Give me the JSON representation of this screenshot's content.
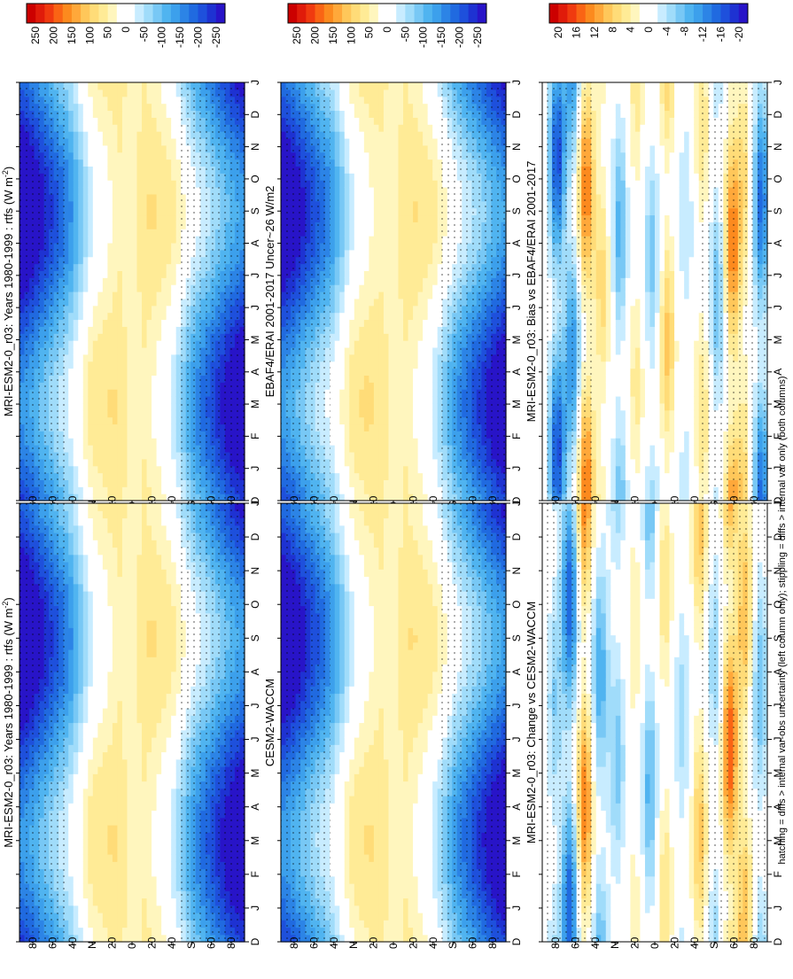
{
  "footnote": "hatching = diffs > internal var-obs uncertainty (left column only); stippling = diffs > internal var only (both columns)",
  "chart_data": [
    {
      "type": "heatmap",
      "id": "p1",
      "title": "MRI-ESM2-0_r03: Years 1980-1999 : rtfs (W m",
      "title_sup": "-2",
      "title_end": ")",
      "months": [
        "D",
        "J",
        "F",
        "M",
        "A",
        "M",
        "J",
        "J",
        "A",
        "S",
        "O",
        "N",
        "D",
        "J"
      ],
      "lat_ticks": [
        "80",
        "60",
        "40",
        "N",
        "20",
        "0",
        "20",
        "40",
        "S",
        "60",
        "80"
      ],
      "colorbar": [
        "250",
        "200",
        "150",
        "100",
        "50",
        "0",
        "-50",
        "-100",
        "-150",
        "-200",
        "-250"
      ],
      "colors": [
        "#cc0000",
        "#e01b0a",
        "#f03a0f",
        "#fa6414",
        "#fc8a1e",
        "#ffa83a",
        "#ffc75a",
        "#ffdc78",
        "#ffeb96",
        "#fff6be",
        "#ffffff",
        "#ffffff",
        "#c8ecff",
        "#a0dcfa",
        "#78c8f5",
        "#50b4f0",
        "#3ca0ec",
        "#2c84e6",
        "#206ae0",
        "#1e50dc",
        "#1e32d2",
        "#2814c8"
      ],
      "lat_profile": [
        [
          -90,
          -240
        ],
        [
          -80,
          -210
        ],
        [
          -70,
          -170
        ],
        [
          -60,
          -130
        ],
        [
          -50,
          -90
        ],
        [
          -45,
          -60
        ],
        [
          -40,
          -30
        ],
        [
          -35,
          5
        ],
        [
          -30,
          25
        ],
        [
          -20,
          45
        ],
        [
          -10,
          60
        ],
        [
          0,
          30
        ],
        [
          10,
          60
        ],
        [
          20,
          45
        ],
        [
          30,
          20
        ],
        [
          35,
          0
        ],
        [
          40,
          -25
        ],
        [
          50,
          -80
        ],
        [
          60,
          -120
        ],
        [
          70,
          -160
        ],
        [
          80,
          -200
        ],
        [
          90,
          -230
        ]
      ],
      "seasonal_amp": 180
    },
    {
      "type": "heatmap",
      "id": "p2",
      "title": "MRI-ESM2-0_r03: Years 1980-1999 : rtfs (W m",
      "title_sup": "-2",
      "title_end": ")",
      "months": [
        "D",
        "J",
        "F",
        "M",
        "A",
        "M",
        "J",
        "J",
        "A",
        "S",
        "O",
        "N",
        "D",
        "J"
      ],
      "lat_ticks": [
        "80",
        "60",
        "40",
        "N",
        "20",
        "0",
        "20",
        "40",
        "S",
        "60",
        "80"
      ],
      "colorbar": [
        "250",
        "200",
        "150",
        "100",
        "50",
        "0",
        "-50",
        "-100",
        "-150",
        "-200",
        "-250"
      ],
      "colors": [
        "#cc0000",
        "#e01b0a",
        "#f03a0f",
        "#fa6414",
        "#fc8a1e",
        "#ffa83a",
        "#ffc75a",
        "#ffdc78",
        "#ffeb96",
        "#fff6be",
        "#ffffff",
        "#ffffff",
        "#c8ecff",
        "#a0dcfa",
        "#78c8f5",
        "#50b4f0",
        "#3ca0ec",
        "#2c84e6",
        "#206ae0",
        "#1e50dc",
        "#1e32d2",
        "#2814c8"
      ],
      "lat_profile": [
        [
          -90,
          -240
        ],
        [
          -80,
          -210
        ],
        [
          -70,
          -170
        ],
        [
          -60,
          -130
        ],
        [
          -50,
          -90
        ],
        [
          -45,
          -60
        ],
        [
          -40,
          -30
        ],
        [
          -35,
          5
        ],
        [
          -30,
          25
        ],
        [
          -20,
          45
        ],
        [
          -10,
          60
        ],
        [
          0,
          30
        ],
        [
          10,
          60
        ],
        [
          20,
          45
        ],
        [
          30,
          20
        ],
        [
          35,
          0
        ],
        [
          40,
          -25
        ],
        [
          50,
          -80
        ],
        [
          60,
          -120
        ],
        [
          70,
          -160
        ],
        [
          80,
          -200
        ],
        [
          90,
          -230
        ]
      ],
      "seasonal_amp": 180
    },
    {
      "type": "heatmap",
      "id": "p3",
      "title": "EBAF4/ERAI 2001-2017 Uncer~26 W/m2",
      "months": [
        "D",
        "J",
        "F",
        "M",
        "A",
        "M",
        "J",
        "J",
        "A",
        "S",
        "O",
        "N",
        "D",
        "J"
      ],
      "lat_ticks": [
        "80",
        "60",
        "40",
        "N",
        "20",
        "0",
        "20",
        "40",
        "S",
        "60",
        "80"
      ],
      "colorbar": [
        "250",
        "200",
        "150",
        "100",
        "50",
        "0",
        "-50",
        "-100",
        "-150",
        "-200",
        "-250"
      ],
      "colors": [
        "#cc0000",
        "#e01b0a",
        "#f03a0f",
        "#fa6414",
        "#fc8a1e",
        "#ffa83a",
        "#ffc75a",
        "#ffdc78",
        "#ffeb96",
        "#fff6be",
        "#ffffff",
        "#ffffff",
        "#c8ecff",
        "#a0dcfa",
        "#78c8f5",
        "#50b4f0",
        "#3ca0ec",
        "#2c84e6",
        "#206ae0",
        "#1e50dc",
        "#1e32d2",
        "#2814c8"
      ],
      "lat_profile": [
        [
          -90,
          -230
        ],
        [
          -80,
          -200
        ],
        [
          -70,
          -160
        ],
        [
          -60,
          -120
        ],
        [
          -50,
          -85
        ],
        [
          -45,
          -55
        ],
        [
          -40,
          -25
        ],
        [
          -35,
          8
        ],
        [
          -30,
          28
        ],
        [
          -20,
          48
        ],
        [
          -10,
          55
        ],
        [
          0,
          35
        ],
        [
          10,
          58
        ],
        [
          20,
          45
        ],
        [
          30,
          18
        ],
        [
          35,
          0
        ],
        [
          40,
          -25
        ],
        [
          50,
          -75
        ],
        [
          60,
          -115
        ],
        [
          70,
          -150
        ],
        [
          80,
          -190
        ],
        [
          90,
          -220
        ]
      ],
      "seasonal_amp": 180
    },
    {
      "type": "heatmap",
      "id": "p4",
      "title": "CESM2-WACCM",
      "months": [
        "D",
        "J",
        "F",
        "M",
        "A",
        "M",
        "J",
        "J",
        "A",
        "S",
        "O",
        "N",
        "D",
        "J"
      ],
      "lat_ticks": [
        "80",
        "60",
        "40",
        "N",
        "20",
        "0",
        "20",
        "40",
        "S",
        "60",
        "80"
      ],
      "colorbar": [
        "250",
        "200",
        "150",
        "100",
        "50",
        "0",
        "-50",
        "-100",
        "-150",
        "-200",
        "-250"
      ],
      "colors": [
        "#cc0000",
        "#e01b0a",
        "#f03a0f",
        "#fa6414",
        "#fc8a1e",
        "#ffa83a",
        "#ffc75a",
        "#ffdc78",
        "#ffeb96",
        "#fff6be",
        "#ffffff",
        "#ffffff",
        "#c8ecff",
        "#a0dcfa",
        "#78c8f5",
        "#50b4f0",
        "#3ca0ec",
        "#2c84e6",
        "#206ae0",
        "#1e50dc",
        "#1e32d2",
        "#2814c8"
      ],
      "lat_profile": [
        [
          -90,
          -235
        ],
        [
          -80,
          -205
        ],
        [
          -70,
          -165
        ],
        [
          -60,
          -125
        ],
        [
          -50,
          -88
        ],
        [
          -45,
          -58
        ],
        [
          -40,
          -28
        ],
        [
          -35,
          5
        ],
        [
          -30,
          26
        ],
        [
          -20,
          46
        ],
        [
          -10,
          58
        ],
        [
          0,
          32
        ],
        [
          10,
          60
        ],
        [
          20,
          44
        ],
        [
          30,
          19
        ],
        [
          35,
          0
        ],
        [
          40,
          -24
        ],
        [
          50,
          -78
        ],
        [
          60,
          -118
        ],
        [
          70,
          -155
        ],
        [
          80,
          -195
        ],
        [
          90,
          -225
        ]
      ],
      "seasonal_amp": 180
    },
    {
      "type": "heatmap",
      "id": "p5",
      "title": "MRI-ESM2-0_r03: Bias vs EBAF4/ERAI 2001-2017",
      "months": [
        "D",
        "J",
        "F",
        "M",
        "A",
        "M",
        "J",
        "J",
        "A",
        "S",
        "O",
        "N",
        "D",
        "J"
      ],
      "lat_ticks": [
        "80",
        "60",
        "40",
        "N",
        "20",
        "0",
        "20",
        "40",
        "S",
        "60",
        "80"
      ],
      "colorbar": [
        "20",
        "16",
        "12",
        "8",
        "4",
        "0",
        "-4",
        "-8",
        "-12",
        "-16",
        "-20"
      ],
      "colors": [
        "#cc0000",
        "#e01b0a",
        "#f03a0f",
        "#fa6414",
        "#fc8a1e",
        "#ffa83a",
        "#ffc75a",
        "#ffdc78",
        "#ffeb96",
        "#fff6be",
        "#ffffff",
        "#ffffff",
        "#c8ecff",
        "#a0dcfa",
        "#78c8f5",
        "#50b4f0",
        "#3ca0ec",
        "#2c84e6",
        "#206ae0",
        "#1e50dc",
        "#1e32d2",
        "#2814c8"
      ],
      "bands": [
        [
          -85,
          -15,
          0.5
        ],
        [
          -72,
          6,
          0.3
        ],
        [
          -62,
          14,
          0.8
        ],
        [
          -50,
          -8,
          1.2
        ],
        [
          -38,
          6,
          2.0
        ],
        [
          -25,
          -4,
          0.6
        ],
        [
          -10,
          9,
          1.5
        ],
        [
          2,
          -7,
          0.9
        ],
        [
          15,
          5,
          1.8
        ],
        [
          28,
          -9,
          0.7
        ],
        [
          42,
          7,
          1.1
        ],
        [
          55,
          14,
          0.4
        ],
        [
          66,
          -12,
          1.6
        ],
        [
          78,
          -17,
          0.2
        ]
      ]
    },
    {
      "type": "heatmap",
      "id": "p6",
      "title": "MRI-ESM2-0_r03: Change vs CESM2-WACCM",
      "months": [
        "D",
        "J",
        "F",
        "M",
        "A",
        "M",
        "J",
        "J",
        "A",
        "S",
        "O",
        "N",
        "D",
        "J"
      ],
      "lat_ticks": [
        "80",
        "60",
        "40",
        "N",
        "20",
        "0",
        "20",
        "40",
        "S",
        "60",
        "80"
      ],
      "colorbar": [
        "20",
        "16",
        "12",
        "8",
        "4",
        "0",
        "-4",
        "-8",
        "-12",
        "-16",
        "-20"
      ],
      "colors": [
        "#cc0000",
        "#e01b0a",
        "#f03a0f",
        "#fa6414",
        "#fc8a1e",
        "#ffa83a",
        "#ffc75a",
        "#ffdc78",
        "#ffeb96",
        "#fff6be",
        "#ffffff",
        "#ffffff",
        "#c8ecff",
        "#a0dcfa",
        "#78c8f5",
        "#50b4f0",
        "#3ca0ec",
        "#2c84e6",
        "#206ae0",
        "#1e50dc",
        "#1e32d2",
        "#2814c8"
      ],
      "bands": [
        [
          -84,
          -8,
          0.9
        ],
        [
          -72,
          10,
          0.4
        ],
        [
          -60,
          16,
          1.3
        ],
        [
          -48,
          -6,
          0.7
        ],
        [
          -36,
          9,
          1.9
        ],
        [
          -22,
          -5,
          1.1
        ],
        [
          -8,
          6,
          0.2
        ],
        [
          4,
          -9,
          1.6
        ],
        [
          16,
          4,
          0.5
        ],
        [
          30,
          -7,
          1.4
        ],
        [
          44,
          -10,
          0.8
        ],
        [
          56,
          14,
          1.7
        ],
        [
          68,
          -16,
          0.3
        ],
        [
          80,
          -6,
          1.0
        ]
      ]
    }
  ]
}
